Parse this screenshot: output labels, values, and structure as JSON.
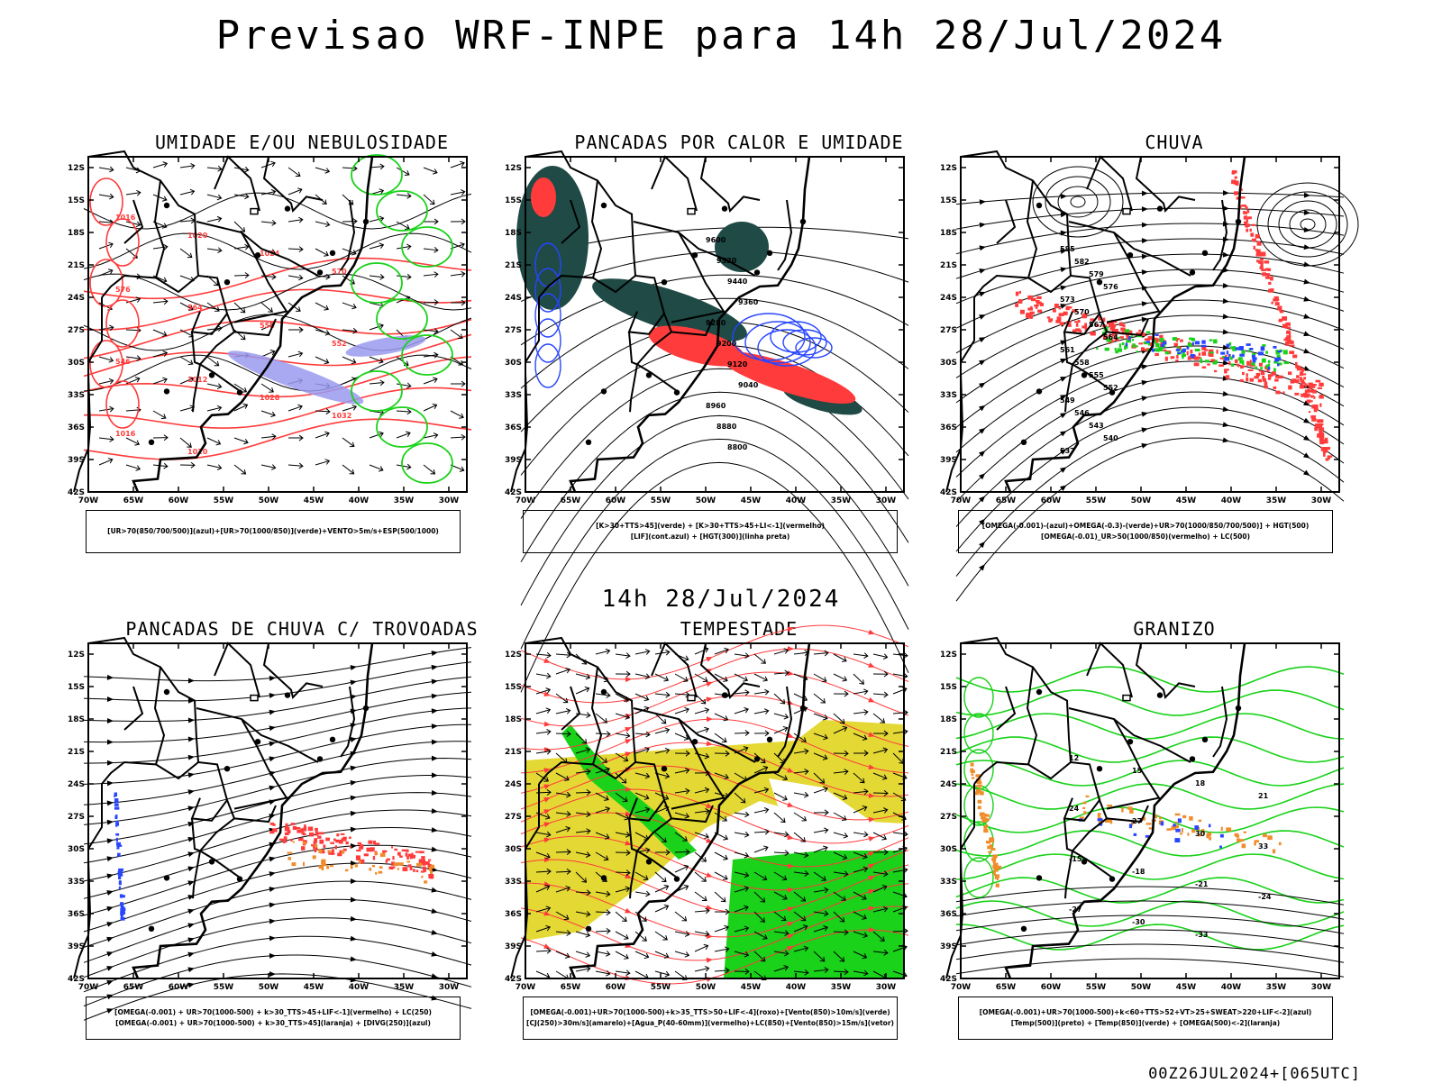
{
  "title": "Previsao WRF-INPE  para 14h 28/Jul/2024",
  "mid_date": "14h 28/Jul/2024",
  "footer": "00Z26JUL2024+[065UTC]",
  "axes": {
    "lat_ticks": [
      "12S",
      "15S",
      "18S",
      "21S",
      "24S",
      "27S",
      "30S",
      "33S",
      "36S",
      "39S",
      "42S"
    ],
    "lon_ticks": [
      "70W",
      "65W",
      "60W",
      "55W",
      "50W",
      "45W",
      "40W",
      "35W",
      "30W"
    ]
  },
  "panels": [
    {
      "title": "UMIDADE E/OU NEBULOSIDADE",
      "legend": [
        "[UR>70(850/700/500)](azul)+[UR>70(1000/850)](verde)+VENTO>5m/s+ESP(500/1000)"
      ],
      "labels": [
        "1016",
        "1020",
        "1024",
        "570",
        "576",
        "564",
        "558",
        "552",
        "546",
        "1012",
        "1028",
        "1032",
        "1016",
        "1020"
      ]
    },
    {
      "title": "PANCADAS POR CALOR E UMIDADE",
      "legend": [
        "[K>30+TTS>45](verde) + [K>30+TTS>45+LI<-1](vermelho)",
        "[LIF](cont.azul) + [HGT(300)](linha preta)"
      ],
      "labels": [
        "9600",
        "9520",
        "9440",
        "9360",
        "9280",
        "9200",
        "9120",
        "9040",
        "8960",
        "8880",
        "8800"
      ]
    },
    {
      "title": "CHUVA",
      "legend": [
        "[OMEGA(-0.001)-(azul)+OMEGA(-0.3)-(verde)+UR>70(1000/850/700/500)] + HGT(500)",
        "[OMEGA(-0.01)_UR>50(1000/850)(vermelho) + LC(500)"
      ],
      "labels": [
        "585",
        "582",
        "579",
        "576",
        "573",
        "570",
        "567",
        "564",
        "561",
        "558",
        "555",
        "552",
        "549",
        "546",
        "543",
        "540",
        "537"
      ]
    },
    {
      "title": "PANCADAS DE CHUVA C/ TROVOADAS",
      "legend": [
        "[OMEGA(-0.001) + UR>70(1000-500) + k>30_TTS>45+LIF<-1](vermelho) + LC(250)",
        "[OMEGA(-0.001) + UR>70(1000-500) + k>30_TTS>45](laranja) + [DIVG(250)](azul)"
      ],
      "labels": []
    },
    {
      "title": "TEMPESTADE",
      "legend": [
        "[OMEGA(-0.001)+UR>70(1000-500)+k>35_TTS>50+LIF<-4](roxo)+[Vento(850)>10m/s](verde)",
        "[CJ(250)>30m/s](amarelo)+[Agua_P(40-60mm)](vermelho)+LC(850)+[Vento(850)>15m/s](vetor)"
      ],
      "labels": []
    },
    {
      "title": "GRANIZO",
      "legend": [
        "[OMEGA(-0.001)+UR>70(1000-500)+k<60+TTS>52+VT>25+SWEAT>220+LIF<-2](azul)",
        "[Temp(500)](preto) + [Temp(850)](verde) + [OMEGA(500)<-2](laranja)"
      ],
      "labels": [
        "12",
        "15",
        "18",
        "21",
        "24",
        "27",
        "30",
        "33",
        "-15",
        "-18",
        "-21",
        "-24",
        "-27",
        "-30",
        "-33"
      ]
    }
  ],
  "colors": {
    "red": "#ff3b3b",
    "green": "#19d219",
    "blue": "#2846ff",
    "lavender": "#9a9af0",
    "darkteal": "#1f4a45",
    "yellow": "#e3d834",
    "orange": "#f08c2a",
    "grid": "#000000"
  }
}
